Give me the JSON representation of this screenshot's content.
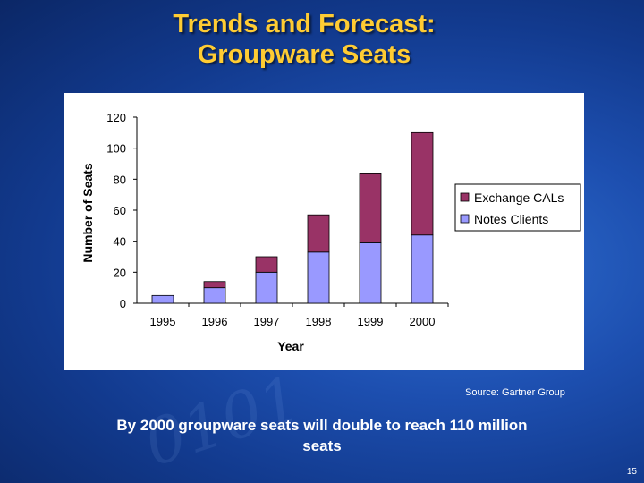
{
  "slide": {
    "title_line1": "Trends and Forecast:",
    "title_line2": "Groupware Seats",
    "source": "Source: Gartner Group",
    "caption_line1": "By 2000 groupware seats will double to reach 110 million",
    "caption_line2": "seats",
    "slide_number": "15"
  },
  "chart_data": {
    "type": "bar",
    "stacked": true,
    "categories": [
      "1995",
      "1996",
      "1997",
      "1998",
      "1999",
      "2000"
    ],
    "series": [
      {
        "name": "Notes Clients",
        "values": [
          5,
          10,
          20,
          33,
          39,
          44
        ],
        "color": "#9999ff"
      },
      {
        "name": "Exchange CALs",
        "values": [
          0,
          4,
          10,
          24,
          45,
          66
        ],
        "color": "#993366"
      }
    ],
    "title": "",
    "xlabel": "Year",
    "ylabel": "Number of Seats",
    "ylim": [
      0,
      120
    ],
    "yticks": [
      0,
      20,
      40,
      60,
      80,
      100,
      120
    ],
    "legend_position": "right",
    "legend_order": [
      "Exchange CALs",
      "Notes Clients"
    ],
    "grid": false
  }
}
